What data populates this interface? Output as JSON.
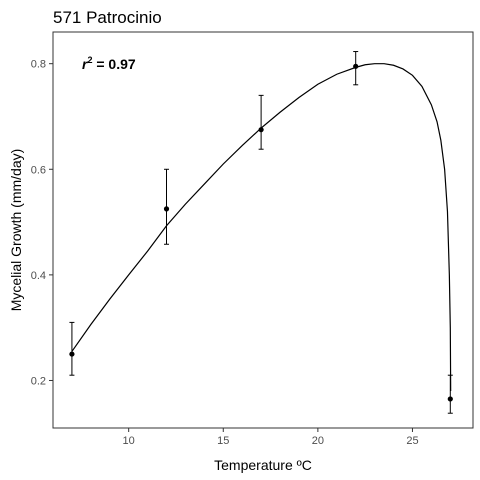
{
  "chart_data": {
    "type": "scatter",
    "title": "571 Patrocinio",
    "xlabel": "Temperature ºC",
    "ylabel": "Mycelial Growth (mm/day)",
    "xlim": [
      6.0,
      28.2
    ],
    "ylim": [
      0.11,
      0.86
    ],
    "x_ticks": [
      10,
      15,
      20,
      25
    ],
    "y_ticks": [
      0.2,
      0.4,
      0.6,
      0.8
    ],
    "grid": false,
    "annotation": {
      "prefix": "r",
      "superscript": "2",
      "value": " = 0.97"
    },
    "points": [
      {
        "x": 7,
        "y": 0.25,
        "ymin": 0.21,
        "ymax": 0.31
      },
      {
        "x": 12,
        "y": 0.525,
        "ymin": 0.458,
        "ymax": 0.6
      },
      {
        "x": 17,
        "y": 0.675,
        "ymin": 0.638,
        "ymax": 0.74
      },
      {
        "x": 22,
        "y": 0.795,
        "ymin": 0.76,
        "ymax": 0.823
      },
      {
        "x": 27,
        "y": 0.165,
        "ymin": 0.138,
        "ymax": 0.21
      }
    ],
    "fit_curve": [
      [
        7,
        0.255
      ],
      [
        8,
        0.306
      ],
      [
        9,
        0.354
      ],
      [
        10,
        0.4
      ],
      [
        11,
        0.445
      ],
      [
        12,
        0.493
      ],
      [
        13,
        0.534
      ],
      [
        14,
        0.572
      ],
      [
        15,
        0.61
      ],
      [
        16,
        0.645
      ],
      [
        17,
        0.678
      ],
      [
        18,
        0.708
      ],
      [
        19,
        0.736
      ],
      [
        20,
        0.761
      ],
      [
        21,
        0.78
      ],
      [
        22,
        0.793
      ],
      [
        22.5,
        0.798
      ],
      [
        23,
        0.8
      ],
      [
        23.5,
        0.8
      ],
      [
        24,
        0.797
      ],
      [
        24.5,
        0.79
      ],
      [
        25,
        0.778
      ],
      [
        25.5,
        0.757
      ],
      [
        26,
        0.722
      ],
      [
        26.3,
        0.69
      ],
      [
        26.5,
        0.655
      ],
      [
        26.7,
        0.6
      ],
      [
        26.85,
        0.52
      ],
      [
        26.95,
        0.4
      ],
      [
        27,
        0.3
      ],
      [
        27.02,
        0.18
      ]
    ]
  }
}
